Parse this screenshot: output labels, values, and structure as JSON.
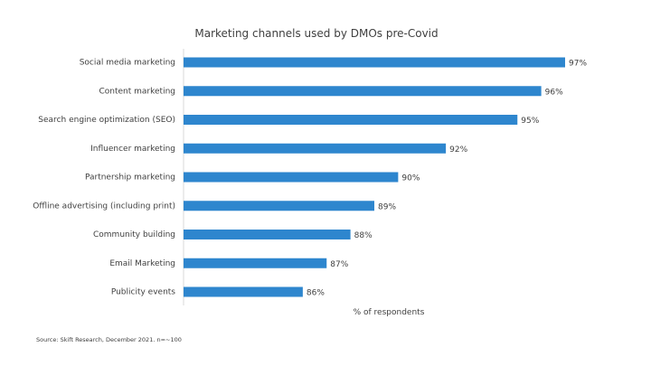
{
  "chart_data": {
    "type": "bar",
    "orientation": "horizontal",
    "title": "Marketing channels used by DMOs pre-Covid",
    "xlabel": "% of respondents",
    "ylabel": "",
    "categories": [
      "Social media marketing",
      "Content marketing",
      "Search engine optimization (SEO)",
      "Influencer marketing",
      "Partnership marketing",
      "Offline advertising (including print)",
      "Community building",
      "Email Marketing",
      "Publicity events"
    ],
    "values": [
      97,
      96,
      95,
      92,
      90,
      89,
      88,
      87,
      86
    ],
    "value_labels": [
      "97%",
      "96%",
      "95%",
      "92%",
      "90%",
      "89%",
      "88%",
      "87%",
      "86%"
    ],
    "xlim": [
      81,
      97
    ],
    "grid": false,
    "legend": "none",
    "bar_color": "#2E86CE",
    "source": "Source: Skift Research, December 2021. n=~100"
  }
}
